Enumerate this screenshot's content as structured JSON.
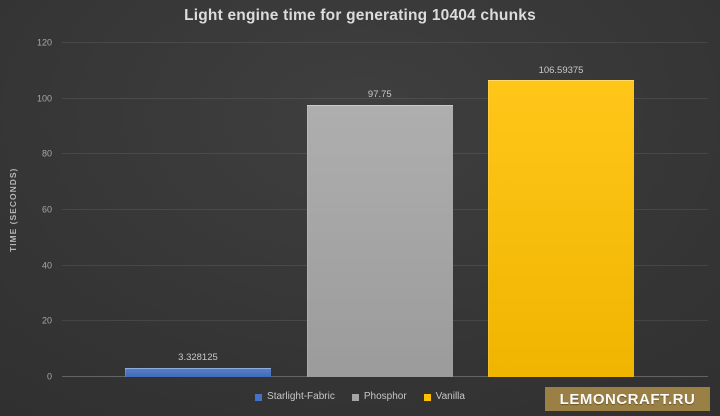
{
  "title": "Light engine time for generating 10404 chunks",
  "watermark": {
    "label": "LEMONCRAFT.RU"
  },
  "colors": {
    "bars": [
      "#4472C4",
      "#A5A5A5",
      "#FFC000"
    ],
    "watermark_bg": "#9B8045",
    "background": "#333333",
    "text": "#DCDCDC"
  },
  "chart_data": {
    "type": "bar",
    "title": "Light engine time for generating 10404 chunks",
    "xlabel": "",
    "ylabel": "TIME (SECONDS)",
    "ylim": [
      0,
      120
    ],
    "yticks": [
      0,
      20,
      40,
      60,
      80,
      100,
      120
    ],
    "grid": true,
    "legend_position": "bottom",
    "categories": [
      "Starlight-Fabric",
      "Phosphor",
      "Vanilla"
    ],
    "values": [
      3.328125,
      97.75,
      106.59375
    ],
    "value_labels": [
      "3.328125",
      "97.75",
      "106.59375"
    ],
    "bar_colors": [
      "#4472C4",
      "#A5A5A5",
      "#FFC000"
    ]
  }
}
